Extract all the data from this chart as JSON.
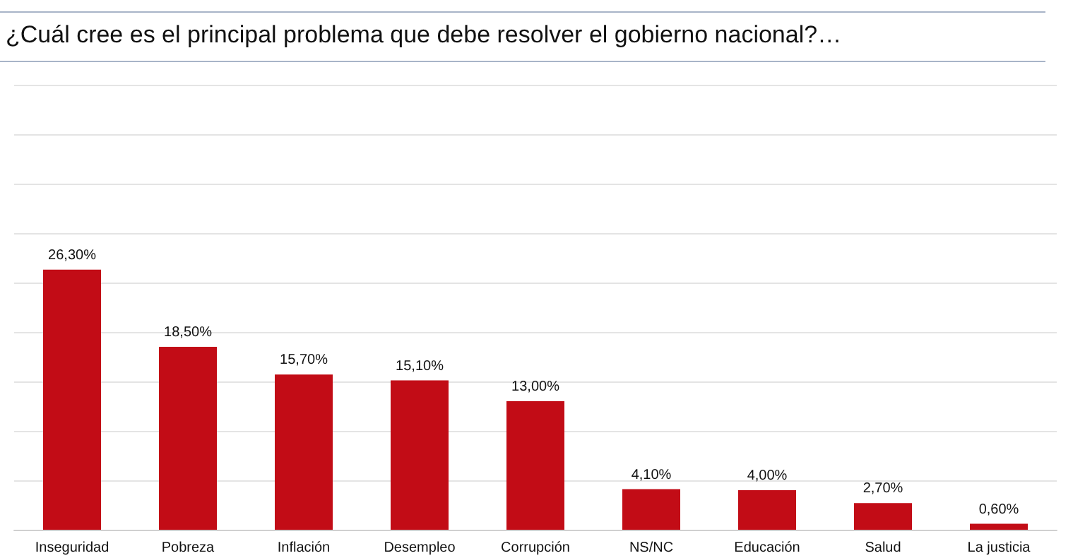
{
  "chart_data": {
    "type": "bar",
    "title": "¿Cuál cree es el principal problema que debe resolver el gobierno nacional?…",
    "categories": [
      "Inseguridad",
      "Pobreza",
      "Inflación",
      "Desempleo",
      "Corrupción",
      "NS/NC",
      "Educación",
      "Salud",
      "La justicia"
    ],
    "values": [
      26.3,
      18.5,
      15.7,
      15.1,
      13.0,
      4.1,
      4.0,
      2.7,
      0.6
    ],
    "value_labels": [
      "26,30%",
      "18,50%",
      "15,70%",
      "15,10%",
      "13,00%",
      "4,10%",
      "4,00%",
      "2,70%",
      "0,60%"
    ],
    "color": "#c20c16",
    "ylim": [
      0,
      45
    ],
    "yticks": [
      {
        "value": 0,
        "label": null
      },
      {
        "value": 5,
        "label": null
      },
      {
        "value": 10,
        "label": null
      },
      {
        "value": 15,
        "label": null
      },
      {
        "value": 20,
        "label": null
      },
      {
        "value": 25,
        "label": null
      },
      {
        "value": 30,
        "label": null
      },
      {
        "value": 35,
        "label": null
      },
      {
        "value": 40,
        "label": null
      },
      {
        "value": 45,
        "label": null
      }
    ],
    "grid": "y",
    "tick_labels": "x"
  }
}
